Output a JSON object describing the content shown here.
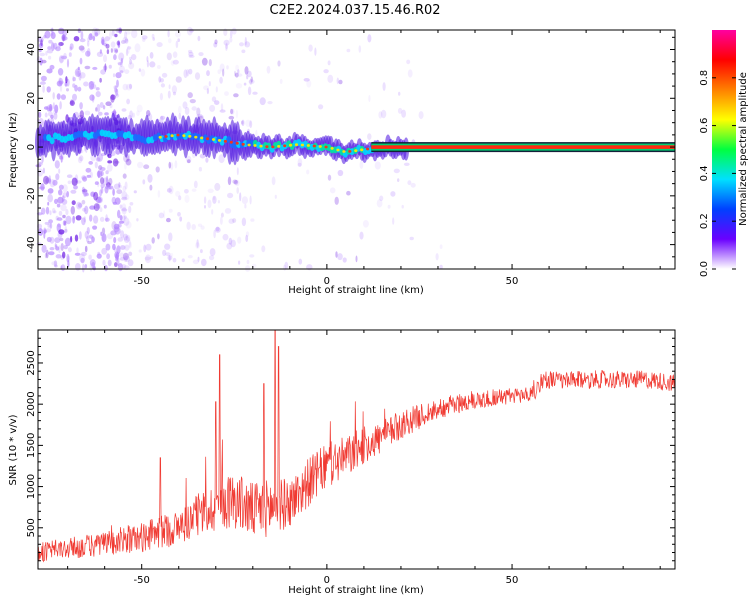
{
  "title": "C2E2.2024.037.15.46.R02",
  "chart_data": [
    {
      "type": "heatmap",
      "xlabel": "Height of straight line (km)",
      "ylabel": "Frequency (Hz)",
      "xlim": [
        -78,
        94
      ],
      "ylim": [
        -50,
        48
      ],
      "x_ticks": [
        -50,
        0,
        50
      ],
      "y_ticks": [
        -40,
        -20,
        0,
        20,
        40
      ],
      "trace_points": [
        {
          "x": -78,
          "y": 3
        },
        {
          "x": -70,
          "y": 4
        },
        {
          "x": -60,
          "y": 6
        },
        {
          "x": -55,
          "y": 5
        },
        {
          "x": -50,
          "y": 3
        },
        {
          "x": -40,
          "y": 5
        },
        {
          "x": -30,
          "y": 3
        },
        {
          "x": -22,
          "y": 1
        },
        {
          "x": -15,
          "y": 0
        },
        {
          "x": -8,
          "y": 1
        },
        {
          "x": 0,
          "y": 0
        },
        {
          "x": 5,
          "y": -2
        },
        {
          "x": 10,
          "y": -1
        },
        {
          "x": 15,
          "y": 0
        },
        {
          "x": 30,
          "y": 0
        },
        {
          "x": 60,
          "y": 0
        },
        {
          "x": 94,
          "y": 0
        }
      ],
      "colorbar": {
        "label": "Normalized spectral amplitude",
        "ticks": [
          "0.0",
          "0.2",
          "0.4",
          "0.6",
          "0.8"
        ],
        "range": [
          0,
          1
        ],
        "colors": [
          "#ffffff",
          "#6a00ff",
          "#0040ff",
          "#00e0ff",
          "#00ff40",
          "#ffff00",
          "#ff8000",
          "#ff0000",
          "#ff00a0"
        ]
      }
    },
    {
      "type": "line",
      "xlabel": "Height of straight line (km)",
      "ylabel": "SNR (10 * v/v)",
      "xlim": [
        -78,
        94
      ],
      "ylim": [
        0,
        2900
      ],
      "x_ticks": [
        -50,
        0,
        50
      ],
      "y_ticks": [
        500,
        1000,
        1500,
        2000,
        2500
      ],
      "series_color": "#f03a32",
      "x": [
        -78,
        -70,
        -60,
        -50,
        -45,
        -40,
        -35,
        -30,
        -25,
        -20,
        -15,
        -10,
        -5,
        0,
        5,
        10,
        15,
        20,
        25,
        30,
        35,
        40,
        45,
        50,
        55,
        57,
        60,
        65,
        70,
        75,
        80,
        85,
        90,
        94
      ],
      "y": [
        200,
        250,
        300,
        380,
        450,
        500,
        650,
        750,
        850,
        700,
        750,
        800,
        1050,
        1250,
        1350,
        1500,
        1600,
        1750,
        1850,
        1950,
        2000,
        2050,
        2080,
        2100,
        2120,
        2280,
        2300,
        2280,
        2300,
        2300,
        2290,
        2300,
        2280,
        2250
      ],
      "noise_amplitude": [
        120,
        130,
        150,
        180,
        200,
        220,
        250,
        300,
        350,
        350,
        350,
        300,
        300,
        280,
        260,
        230,
        200,
        180,
        150,
        130,
        120,
        120,
        110,
        100,
        100,
        110,
        110,
        110,
        110,
        110,
        110,
        110,
        110,
        110
      ],
      "spikes": [
        {
          "x": -45,
          "y": 1350
        },
        {
          "x": -30,
          "y": 2030
        },
        {
          "x": -29,
          "y": 2600
        },
        {
          "x": -17,
          "y": 2250
        },
        {
          "x": -14,
          "y": 2900
        },
        {
          "x": -13,
          "y": 2700
        }
      ]
    }
  ]
}
